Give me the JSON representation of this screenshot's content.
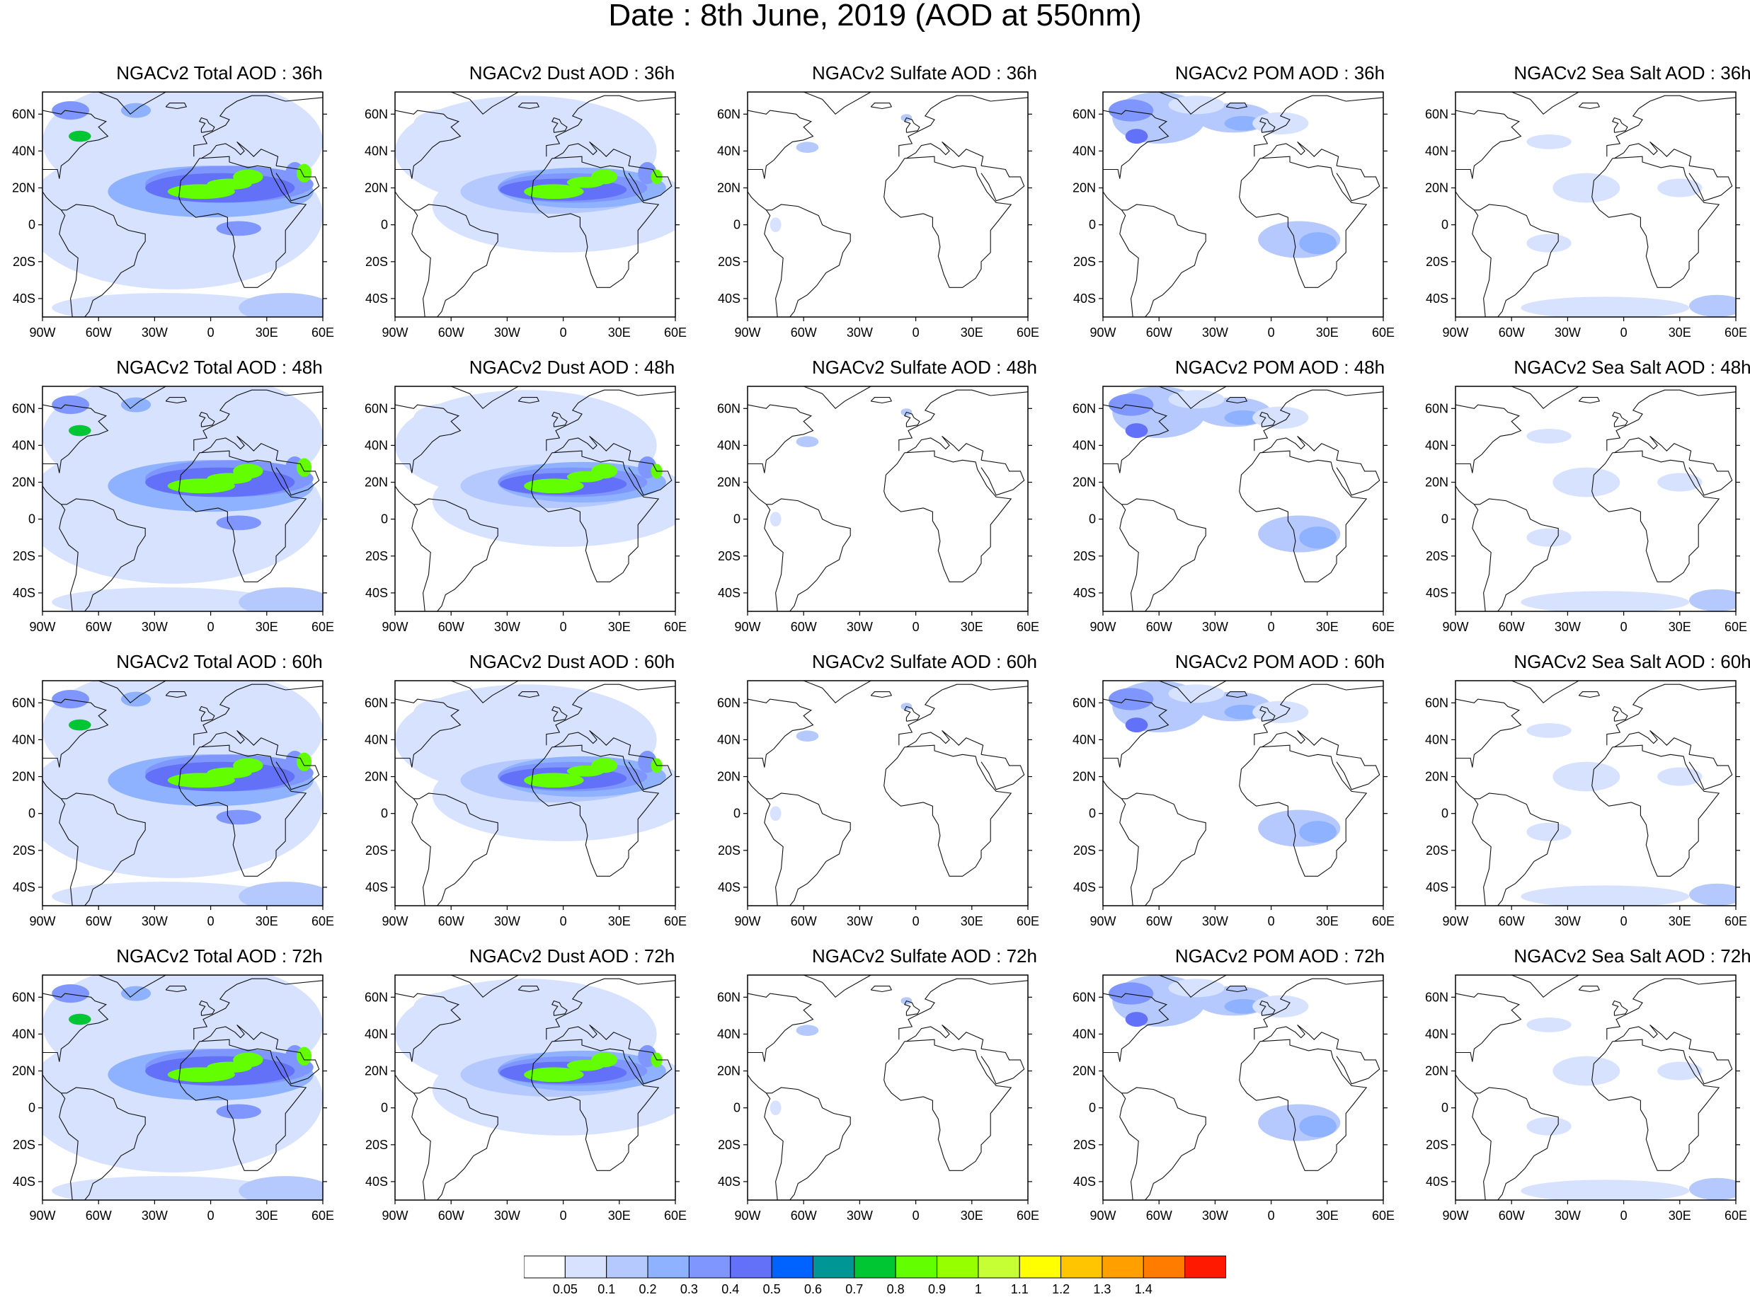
{
  "title": "Date : 8th June, 2019 (AOD at 550nm)",
  "panels": [
    {
      "title": "NGACv2 Total AOD : 36h",
      "kind": "total"
    },
    {
      "title": "NGACv2 Dust AOD : 36h",
      "kind": "dust"
    },
    {
      "title": "NGACv2 Sulfate AOD : 36h",
      "kind": "sulfate"
    },
    {
      "title": "NGACv2 POM AOD : 36h",
      "kind": "pom"
    },
    {
      "title": "NGACv2 Sea Salt AOD : 36h",
      "kind": "seasalt"
    },
    {
      "title": "NGACv2 Total AOD : 48h",
      "kind": "total"
    },
    {
      "title": "NGACv2 Dust AOD : 48h",
      "kind": "dust"
    },
    {
      "title": "NGACv2 Sulfate AOD : 48h",
      "kind": "sulfate"
    },
    {
      "title": "NGACv2 POM AOD : 48h",
      "kind": "pom"
    },
    {
      "title": "NGACv2 Sea Salt AOD : 48h",
      "kind": "seasalt"
    },
    {
      "title": "NGACv2 Total AOD : 60h",
      "kind": "total"
    },
    {
      "title": "NGACv2 Dust AOD : 60h",
      "kind": "dust"
    },
    {
      "title": "NGACv2 Sulfate AOD : 60h",
      "kind": "sulfate"
    },
    {
      "title": "NGACv2 POM AOD : 60h",
      "kind": "pom"
    },
    {
      "title": "NGACv2 Sea Salt AOD : 60h",
      "kind": "seasalt"
    },
    {
      "title": "NGACv2 Total AOD : 72h",
      "kind": "total"
    },
    {
      "title": "NGACv2 Dust AOD : 72h",
      "kind": "dust"
    },
    {
      "title": "NGACv2 Sulfate AOD : 72h",
      "kind": "sulfate"
    },
    {
      "title": "NGACv2 POM AOD : 72h",
      "kind": "pom"
    },
    {
      "title": "NGACv2 Sea Salt  AOD : 72h",
      "kind": "seasalt"
    }
  ],
  "lat_ticks": [
    "60N",
    "40N",
    "20N",
    "0",
    "20S",
    "40S"
  ],
  "lon_ticks": [
    "90W",
    "60W",
    "30W",
    "0",
    "30E",
    "60E"
  ],
  "colorbar": {
    "labels": [
      "0.05",
      "0.1",
      "0.2",
      "0.3",
      "0.4",
      "0.5",
      "0.6",
      "0.7",
      "0.8",
      "0.9",
      "1",
      "1.1",
      "1.2",
      "1.3",
      "1.4"
    ],
    "colors": [
      "#ffffff",
      "#d6e2ff",
      "#b5c9ff",
      "#8eb2ff",
      "#7f96ff",
      "#6370f8",
      "#0063ff",
      "#009696",
      "#00c633",
      "#63ff00",
      "#96ff00",
      "#c6ff33",
      "#ffff00",
      "#ffc600",
      "#ffa000",
      "#ff7c00",
      "#ff1900"
    ]
  }
}
